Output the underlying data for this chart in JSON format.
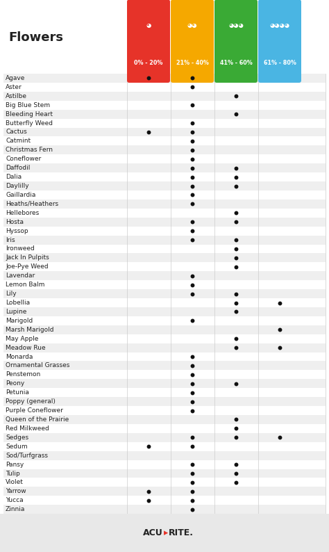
{
  "flowers": [
    "Agave",
    "Aster",
    "Astilbe",
    "Big Blue Stem",
    "Bleeding Heart",
    "Butterfly Weed",
    "Cactus",
    "Catmint",
    "Christmas Fern",
    "Coneflower",
    "Daffodil",
    "Dalia",
    "Daylilly",
    "Gaillardia",
    "Heaths/Heathers",
    "Hellebores",
    "Hosta",
    "Hyssop",
    "Iris",
    "Ironweed",
    "Jack In Pulpits",
    "Joe-Pye Weed",
    "Lavendar",
    "Lemon Balm",
    "Lily",
    "Lobellia",
    "Lupine",
    "Marigold",
    "Marsh Marigold",
    "May Apple",
    "Meadow Rue",
    "Monarda",
    "Ornamental Grasses",
    "Penstemon",
    "Peony",
    "Petunia",
    "Poppy (general)",
    "Purple Coneflower",
    "Queen of the Prairie",
    "Red Milkweed",
    "Sedges",
    "Sedum",
    "Sod/Turfgrass",
    "Pansy",
    "Tulip",
    "Violet",
    "Yarrow",
    "Yucca",
    "Zinnia"
  ],
  "dots": {
    "Agave": [
      1,
      1,
      0,
      0
    ],
    "Aster": [
      0,
      1,
      0,
      0
    ],
    "Astilbe": [
      0,
      0,
      1,
      0
    ],
    "Big Blue Stem": [
      0,
      1,
      0,
      0
    ],
    "Bleeding Heart": [
      0,
      0,
      1,
      0
    ],
    "Butterfly Weed": [
      0,
      1,
      0,
      0
    ],
    "Cactus": [
      1,
      1,
      0,
      0
    ],
    "Catmint": [
      0,
      1,
      0,
      0
    ],
    "Christmas Fern": [
      0,
      1,
      0,
      0
    ],
    "Coneflower": [
      0,
      1,
      0,
      0
    ],
    "Daffodil": [
      0,
      1,
      1,
      0
    ],
    "Dalia": [
      0,
      1,
      1,
      0
    ],
    "Daylilly": [
      0,
      1,
      1,
      0
    ],
    "Gaillardia": [
      0,
      1,
      0,
      0
    ],
    "Heaths/Heathers": [
      0,
      1,
      0,
      0
    ],
    "Hellebores": [
      0,
      0,
      1,
      0
    ],
    "Hosta": [
      0,
      1,
      1,
      0
    ],
    "Hyssop": [
      0,
      1,
      0,
      0
    ],
    "Iris": [
      0,
      1,
      1,
      0
    ],
    "Ironweed": [
      0,
      0,
      1,
      0
    ],
    "Jack In Pulpits": [
      0,
      0,
      1,
      0
    ],
    "Joe-Pye Weed": [
      0,
      0,
      1,
      0
    ],
    "Lavendar": [
      0,
      1,
      0,
      0
    ],
    "Lemon Balm": [
      0,
      1,
      0,
      0
    ],
    "Lily": [
      0,
      1,
      1,
      0
    ],
    "Lobellia": [
      0,
      0,
      1,
      1
    ],
    "Lupine": [
      0,
      0,
      1,
      0
    ],
    "Marigold": [
      0,
      1,
      0,
      0
    ],
    "Marsh Marigold": [
      0,
      0,
      0,
      1
    ],
    "May Apple": [
      0,
      0,
      1,
      0
    ],
    "Meadow Rue": [
      0,
      0,
      1,
      1
    ],
    "Monarda": [
      0,
      1,
      0,
      0
    ],
    "Ornamental Grasses": [
      0,
      1,
      0,
      0
    ],
    "Penstemon": [
      0,
      1,
      0,
      0
    ],
    "Peony": [
      0,
      1,
      1,
      0
    ],
    "Petunia": [
      0,
      1,
      0,
      0
    ],
    "Poppy (general)": [
      0,
      1,
      0,
      0
    ],
    "Purple Coneflower": [
      0,
      1,
      0,
      0
    ],
    "Queen of the Prairie": [
      0,
      0,
      1,
      0
    ],
    "Red Milkweed": [
      0,
      0,
      1,
      0
    ],
    "Sedges": [
      0,
      1,
      1,
      1
    ],
    "Sedum": [
      1,
      1,
      0,
      0
    ],
    "Sod/Turfgrass": [
      0,
      0,
      0,
      0
    ],
    "Pansy": [
      0,
      1,
      1,
      0
    ],
    "Tulip": [
      0,
      1,
      1,
      0
    ],
    "Violet": [
      0,
      1,
      1,
      0
    ],
    "Yarrow": [
      1,
      1,
      0,
      0
    ],
    "Yucca": [
      1,
      1,
      0,
      0
    ],
    "Zinnia": [
      0,
      1,
      0,
      0
    ]
  },
  "col_labels": [
    "0% - 20%",
    "21% - 40%",
    "41% - 60%",
    "61% - 80%"
  ],
  "col_colors": [
    "#e63329",
    "#f5a800",
    "#3aaa35",
    "#4ab5e3"
  ],
  "header_title": "Flowers",
  "bg_color": "#ffffff",
  "row_alt_color": "#efefef",
  "row_main_color": "#ffffff",
  "dot_color": "#111111",
  "footer_bg": "#e8e8e8"
}
